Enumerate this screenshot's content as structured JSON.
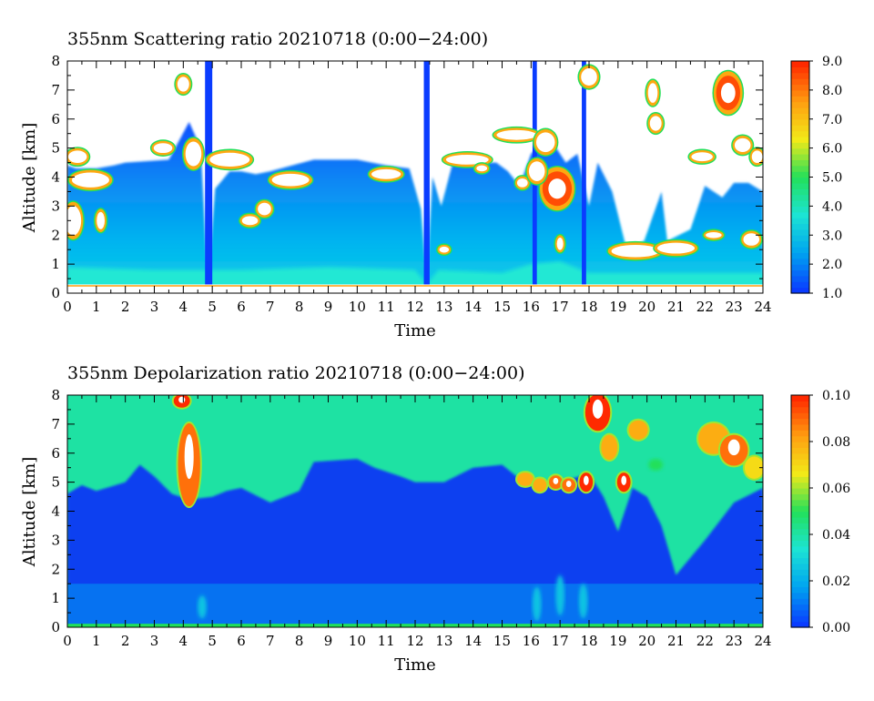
{
  "chart_data": [
    {
      "type": "heatmap",
      "title": "355nm Scattering ratio  20210718 (0:00−24:00)",
      "xlabel": "Time",
      "ylabel": "Altitude [km]",
      "xlim": [
        0,
        24
      ],
      "ylim": [
        0,
        8
      ],
      "x_ticks": [
        "0",
        "1",
        "2",
        "3",
        "4",
        "5",
        "6",
        "7",
        "8",
        "9",
        "10",
        "11",
        "12",
        "13",
        "14",
        "15",
        "16",
        "17",
        "18",
        "19",
        "20",
        "21",
        "22",
        "23",
        "24"
      ],
      "y_ticks": [
        "0",
        "1",
        "2",
        "3",
        "4",
        "5",
        "6",
        "7",
        "8"
      ],
      "colorbar": {
        "range": [
          1.0,
          9.0
        ],
        "ticks": [
          "1.0",
          "2.0",
          "3.0",
          "4.0",
          "5.0",
          "6.0",
          "7.0",
          "8.0",
          "9.0"
        ],
        "colors": [
          "#0a3cff",
          "#00a4f0",
          "#1ce4d4",
          "#22e05a",
          "#f2ea18",
          "#ff9e10",
          "#ff2a00"
        ]
      },
      "layers": {
        "aerosol_top": [
          [
            0,
            4.4
          ],
          [
            0.3,
            4.3
          ],
          [
            1,
            4.3
          ],
          [
            1.6,
            4.4
          ],
          [
            2,
            4.5
          ],
          [
            3.5,
            4.6
          ],
          [
            4.2,
            5.9
          ],
          [
            4.6,
            5.0
          ],
          [
            4.85,
            0.3
          ],
          [
            5.1,
            3.6
          ],
          [
            5.6,
            4.2
          ],
          [
            6,
            4.2
          ],
          [
            6.5,
            4.1
          ],
          [
            7,
            4.2
          ],
          [
            8.5,
            4.6
          ],
          [
            10,
            4.6
          ],
          [
            11,
            4.4
          ],
          [
            11.8,
            4.3
          ],
          [
            12.2,
            2.9
          ],
          [
            12.4,
            0.4
          ],
          [
            12.6,
            4.0
          ],
          [
            12.9,
            3.0
          ],
          [
            13.3,
            4.5
          ],
          [
            14.8,
            4.5
          ],
          [
            15.2,
            4.2
          ],
          [
            15.6,
            3.7
          ],
          [
            16,
            4.8
          ],
          [
            16.6,
            5.4
          ],
          [
            17.2,
            4.5
          ],
          [
            17.6,
            4.8
          ],
          [
            18,
            3.0
          ],
          [
            18.3,
            4.5
          ],
          [
            18.8,
            3.5
          ],
          [
            19.3,
            1.5
          ],
          [
            19.9,
            1.8
          ],
          [
            20.5,
            3.5
          ],
          [
            20.7,
            1.8
          ],
          [
            21.5,
            2.2
          ],
          [
            22,
            3.7
          ],
          [
            22.6,
            3.3
          ],
          [
            23,
            3.8
          ],
          [
            23.5,
            3.8
          ],
          [
            24,
            3.5
          ]
        ],
        "dense_top": [
          [
            0,
            0.9
          ],
          [
            3,
            0.8
          ],
          [
            6,
            0.8
          ],
          [
            9,
            0.9
          ],
          [
            12,
            0.8
          ],
          [
            12.4,
            0.3
          ],
          [
            12.8,
            0.8
          ],
          [
            15,
            0.7
          ],
          [
            16,
            1.0
          ],
          [
            17,
            1.1
          ],
          [
            18,
            0.7
          ],
          [
            20,
            0.7
          ],
          [
            24,
            0.7
          ]
        ],
        "clear_gaps": [
          [
            4.75,
            5.0
          ],
          [
            12.3,
            12.5
          ],
          [
            16.05,
            16.2
          ],
          [
            17.75,
            17.9
          ]
        ],
        "clouds": [
          {
            "t": 0.35,
            "z": 4.7,
            "dt": 0.35,
            "dz": 0.25,
            "level": 6
          },
          {
            "t": 0.8,
            "z": 3.9,
            "dt": 0.7,
            "dz": 0.3,
            "level": 6
          },
          {
            "t": 0.2,
            "z": 2.5,
            "dt": 0.3,
            "dz": 0.6,
            "level": 5
          },
          {
            "t": 1.15,
            "z": 2.5,
            "dt": 0.15,
            "dz": 0.35,
            "level": 4
          },
          {
            "t": 4.0,
            "z": 7.2,
            "dt": 0.22,
            "dz": 0.3,
            "level": 6
          },
          {
            "t": 4.35,
            "z": 4.8,
            "dt": 0.3,
            "dz": 0.5,
            "level": 6
          },
          {
            "t": 3.3,
            "z": 5.0,
            "dt": 0.35,
            "dz": 0.2,
            "level": 6
          },
          {
            "t": 5.6,
            "z": 4.6,
            "dt": 0.75,
            "dz": 0.28,
            "level": 6
          },
          {
            "t": 6.3,
            "z": 2.5,
            "dt": 0.3,
            "dz": 0.18,
            "level": 6
          },
          {
            "t": 6.8,
            "z": 2.9,
            "dt": 0.25,
            "dz": 0.25,
            "level": 6
          },
          {
            "t": 7.7,
            "z": 3.9,
            "dt": 0.7,
            "dz": 0.25,
            "level": 6
          },
          {
            "t": 11.0,
            "z": 4.1,
            "dt": 0.55,
            "dz": 0.2,
            "level": 6
          },
          {
            "t": 13.0,
            "z": 1.5,
            "dt": 0.18,
            "dz": 0.12,
            "level": 6
          },
          {
            "t": 13.8,
            "z": 4.6,
            "dt": 0.8,
            "dz": 0.2,
            "level": 6
          },
          {
            "t": 14.3,
            "z": 4.3,
            "dt": 0.2,
            "dz": 0.12,
            "level": 6
          },
          {
            "t": 15.5,
            "z": 5.45,
            "dt": 0.75,
            "dz": 0.2,
            "level": 6
          },
          {
            "t": 16.5,
            "z": 5.2,
            "dt": 0.35,
            "dz": 0.4,
            "level": 6
          },
          {
            "t": 16.9,
            "z": 3.6,
            "dt": 0.55,
            "dz": 0.7,
            "level": 7
          },
          {
            "t": 15.7,
            "z": 3.8,
            "dt": 0.2,
            "dz": 0.18,
            "level": 6
          },
          {
            "t": 16.2,
            "z": 4.2,
            "dt": 0.3,
            "dz": 0.4,
            "level": 6
          },
          {
            "t": 17.0,
            "z": 1.7,
            "dt": 0.12,
            "dz": 0.25,
            "level": 4
          },
          {
            "t": 18.0,
            "z": 7.45,
            "dt": 0.3,
            "dz": 0.35,
            "level": 6
          },
          {
            "t": 19.6,
            "z": 1.45,
            "dt": 0.9,
            "dz": 0.25,
            "level": 6
          },
          {
            "t": 21.0,
            "z": 1.55,
            "dt": 0.7,
            "dz": 0.22,
            "level": 6
          },
          {
            "t": 20.2,
            "z": 6.9,
            "dt": 0.18,
            "dz": 0.4,
            "level": 6
          },
          {
            "t": 20.3,
            "z": 5.85,
            "dt": 0.22,
            "dz": 0.3,
            "level": 6
          },
          {
            "t": 21.9,
            "z": 4.7,
            "dt": 0.4,
            "dz": 0.18,
            "level": 6
          },
          {
            "t": 22.3,
            "z": 2.0,
            "dt": 0.3,
            "dz": 0.12,
            "level": 6
          },
          {
            "t": 22.8,
            "z": 6.9,
            "dt": 0.45,
            "dz": 0.7,
            "level": 7
          },
          {
            "t": 23.3,
            "z": 5.1,
            "dt": 0.3,
            "dz": 0.28,
            "level": 6
          },
          {
            "t": 23.6,
            "z": 1.85,
            "dt": 0.3,
            "dz": 0.25,
            "level": 6
          },
          {
            "t": 23.8,
            "z": 4.7,
            "dt": 0.2,
            "dz": 0.25,
            "level": 6
          }
        ]
      }
    },
    {
      "type": "heatmap",
      "title": "355nm Depolarization ratio  20210718 (0:00−24:00)",
      "xlabel": "Time",
      "ylabel": "Altitude [km]",
      "xlim": [
        0,
        24
      ],
      "ylim": [
        0,
        8
      ],
      "x_ticks": [
        "0",
        "1",
        "2",
        "3",
        "4",
        "5",
        "6",
        "7",
        "8",
        "9",
        "10",
        "11",
        "12",
        "13",
        "14",
        "15",
        "16",
        "17",
        "18",
        "19",
        "20",
        "21",
        "22",
        "23",
        "24"
      ],
      "y_ticks": [
        "0",
        "1",
        "2",
        "3",
        "4",
        "5",
        "6",
        "7",
        "8"
      ],
      "colorbar": {
        "range": [
          0.0,
          0.1
        ],
        "ticks": [
          "0.00",
          "0.02",
          "0.04",
          "0.06",
          "0.08",
          "0.10"
        ],
        "colors": [
          "#0a3cff",
          "#00a4f0",
          "#1ce4d4",
          "#22e05a",
          "#f2ea18",
          "#ff9e10",
          "#ff2a00"
        ]
      },
      "layers": {
        "background_level": 0.04,
        "low_depol_top": [
          [
            0,
            4.6
          ],
          [
            0.5,
            4.9
          ],
          [
            1,
            4.7
          ],
          [
            2,
            5.0
          ],
          [
            2.5,
            5.6
          ],
          [
            3,
            5.2
          ],
          [
            3.6,
            4.6
          ],
          [
            4.2,
            4.4
          ],
          [
            5,
            4.5
          ],
          [
            5.5,
            4.7
          ],
          [
            6,
            4.8
          ],
          [
            7,
            4.3
          ],
          [
            8,
            4.7
          ],
          [
            8.5,
            5.7
          ],
          [
            10,
            5.8
          ],
          [
            10.6,
            5.5
          ],
          [
            11.5,
            5.2
          ],
          [
            12,
            5.0
          ],
          [
            13,
            5.0
          ],
          [
            14,
            5.5
          ],
          [
            15,
            5.6
          ],
          [
            15.5,
            5.2
          ],
          [
            16,
            5.0
          ],
          [
            17,
            5.0
          ],
          [
            18,
            5.3
          ],
          [
            18.5,
            4.5
          ],
          [
            19,
            3.3
          ],
          [
            19.5,
            4.8
          ],
          [
            20,
            4.5
          ],
          [
            20.5,
            3.5
          ],
          [
            21,
            1.8
          ],
          [
            22,
            3.0
          ],
          [
            23,
            4.3
          ],
          [
            24,
            4.8
          ]
        ],
        "low_layer_level": 0.015,
        "features": [
          {
            "t": 4.2,
            "z": 5.6,
            "dt": 0.35,
            "dz": 1.4,
            "level": 0.09
          },
          {
            "t": 3.95,
            "z": 7.8,
            "dt": 0.25,
            "dz": 0.2,
            "level": 0.1
          },
          {
            "t": 15.8,
            "z": 5.1,
            "dt": 0.25,
            "dz": 0.2,
            "level": 0.08
          },
          {
            "t": 16.3,
            "z": 4.9,
            "dt": 0.2,
            "dz": 0.2,
            "level": 0.08
          },
          {
            "t": 16.85,
            "z": 5.0,
            "dt": 0.2,
            "dz": 0.2,
            "level": 0.09
          },
          {
            "t": 17.3,
            "z": 4.9,
            "dt": 0.2,
            "dz": 0.2,
            "level": 0.09
          },
          {
            "t": 17.9,
            "z": 5.0,
            "dt": 0.2,
            "dz": 0.3,
            "level": 0.1
          },
          {
            "t": 18.3,
            "z": 7.4,
            "dt": 0.4,
            "dz": 0.6,
            "level": 0.1
          },
          {
            "t": 18.7,
            "z": 6.2,
            "dt": 0.25,
            "dz": 0.4,
            "level": 0.08
          },
          {
            "t": 19.2,
            "z": 5.0,
            "dt": 0.2,
            "dz": 0.3,
            "level": 0.1
          },
          {
            "t": 19.7,
            "z": 6.8,
            "dt": 0.3,
            "dz": 0.3,
            "level": 0.08
          },
          {
            "t": 20.3,
            "z": 5.6,
            "dt": 0.25,
            "dz": 0.2,
            "level": 0.05
          },
          {
            "t": 22.3,
            "z": 6.5,
            "dt": 0.5,
            "dz": 0.5,
            "level": 0.08
          },
          {
            "t": 23.0,
            "z": 6.1,
            "dt": 0.45,
            "dz": 0.5,
            "level": 0.09
          },
          {
            "t": 23.7,
            "z": 5.5,
            "dt": 0.3,
            "dz": 0.35,
            "level": 0.07
          },
          {
            "t": 16.2,
            "z": 0.8,
            "dt": 0.15,
            "dz": 0.6,
            "level": 0.025
          },
          {
            "t": 17.0,
            "z": 1.1,
            "dt": 0.15,
            "dz": 0.7,
            "level": 0.025
          },
          {
            "t": 17.8,
            "z": 0.9,
            "dt": 0.15,
            "dz": 0.6,
            "level": 0.025
          },
          {
            "t": 4.65,
            "z": 0.7,
            "dt": 0.15,
            "dz": 0.4,
            "level": 0.025
          }
        ]
      }
    }
  ]
}
